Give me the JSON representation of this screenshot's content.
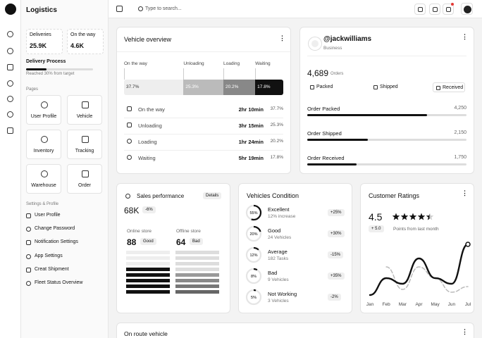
{
  "sidebar": {
    "brand": "Logistics",
    "stats": [
      {
        "label": "Deliveries",
        "value": "25.9K"
      },
      {
        "label": "On the way",
        "value": "4.6K"
      }
    ],
    "delivery_process": {
      "title": "Delivery Process",
      "progress": 30,
      "caption": "Reached 30% from target"
    },
    "pages_title": "Pages",
    "pages": [
      "User Profile",
      "Vehicle",
      "Inventory",
      "Tracking",
      "Warehouse",
      "Order"
    ],
    "settings_title": "Settings & Profile",
    "settings": [
      "User Profile",
      "Change Password",
      "Notification Settings",
      "App Settings",
      "Creat Shipment",
      "Fleet Status Overview"
    ]
  },
  "topbar": {
    "search_placeholder": "Type to search..."
  },
  "vehicle_overview": {
    "title": "Vehicle overview",
    "stages": [
      {
        "name": "On the way",
        "value": 37.7,
        "value_label": "37.7%",
        "time": "2hr 10min"
      },
      {
        "name": "Unloading",
        "value": 25.3,
        "value_label": "25.3%",
        "time": "3hr 15min"
      },
      {
        "name": "Loading",
        "value": 20.2,
        "value_label": "20.2%",
        "time": "1hr 24min"
      },
      {
        "name": "Waiting",
        "value": 17.8,
        "value_label": "17.8%",
        "time": "5hr 19min"
      }
    ]
  },
  "profile": {
    "username": "@jackwilliams",
    "role": "Business",
    "orders": "4,689",
    "orders_label": "Orders",
    "tabs": [
      "Packed",
      "Shipped",
      "Received"
    ],
    "metrics": [
      {
        "name": "Order Packed",
        "value": 4250,
        "value_label": "4,250"
      },
      {
        "name": "Order Shipped",
        "value": 2150,
        "value_label": "2,150"
      },
      {
        "name": "Order Received",
        "value": 1750,
        "value_label": "1,750"
      }
    ]
  },
  "sales_performance": {
    "title": "Sales performance",
    "action": "Details",
    "value": "68K",
    "change": "-6%",
    "stores": [
      {
        "name": "Online store",
        "value": 88,
        "status": "Good"
      },
      {
        "name": "Offline store",
        "value": 64,
        "status": "Bad"
      }
    ]
  },
  "vehicles_condition": {
    "title": "Vehicles Condition",
    "items": [
      {
        "value": 55,
        "value_label": "55%",
        "name": "Excellent",
        "detail": "12% increase",
        "change": "+25%"
      },
      {
        "value": 20,
        "value_label": "20%",
        "name": "Good",
        "detail": "24 Vehicles",
        "change": "+30%"
      },
      {
        "value": 12,
        "value_label": "12%",
        "name": "Average",
        "detail": "182 Tasks",
        "change": "-15%"
      },
      {
        "value": 8,
        "value_label": "8%",
        "name": "Bad",
        "detail": "9 Vehicles",
        "change": "+35%"
      },
      {
        "value": 5,
        "value_label": "5%",
        "name": "Not Working",
        "detail": "3 Vehicles",
        "change": "-2%"
      }
    ]
  },
  "customer_ratings": {
    "title": "Customer Ratings",
    "rating": 4.5,
    "change": "+ 5.0",
    "caption": "Points from last month",
    "chart_data": {
      "type": "line",
      "categories": [
        "Jan",
        "Feb",
        "Mar",
        "Apr",
        "May",
        "Jun",
        "Jul"
      ],
      "ylim": [
        0,
        100
      ],
      "series": [
        {
          "color": "#111111",
          "values": [
            5,
            35,
            25,
            70,
            35,
            25,
            95
          ]
        },
        {
          "color": "#bbbbbb",
          "dashed": true,
          "values": [
            null,
            55,
            15,
            55,
            35,
            10,
            20
          ]
        }
      ]
    }
  },
  "on_route": {
    "title": "On route vehicle"
  }
}
